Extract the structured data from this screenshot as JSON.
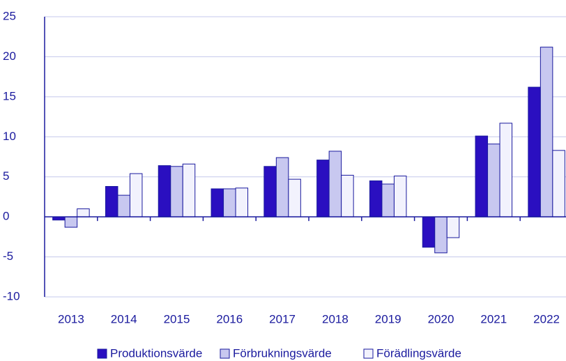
{
  "chart_data": {
    "type": "bar",
    "categories": [
      "2013",
      "2014",
      "2015",
      "2016",
      "2017",
      "2018",
      "2019",
      "2020",
      "2021",
      "2022"
    ],
    "series": [
      {
        "name": "Produktionsvärde",
        "color": "#2a0fc0",
        "values": [
          -0.4,
          3.8,
          6.4,
          3.5,
          6.3,
          7.1,
          4.5,
          -3.8,
          10.1,
          16.2
        ]
      },
      {
        "name": "Förbrukningsvärde",
        "color": "#c8c8f0",
        "values": [
          -1.3,
          2.7,
          6.3,
          3.5,
          7.4,
          8.2,
          4.1,
          -4.5,
          9.1,
          21.2
        ]
      },
      {
        "name": "Förädlingsvärde",
        "color": "#f2f2fd",
        "values": [
          1.0,
          5.4,
          6.6,
          3.6,
          4.7,
          5.2,
          5.1,
          -2.6,
          11.7,
          8.3
        ]
      }
    ],
    "ylim": [
      -10,
      25
    ],
    "yticks": [
      -10,
      -5,
      0,
      5,
      10,
      15,
      20,
      25
    ],
    "grid": true,
    "legend": "bottom"
  }
}
